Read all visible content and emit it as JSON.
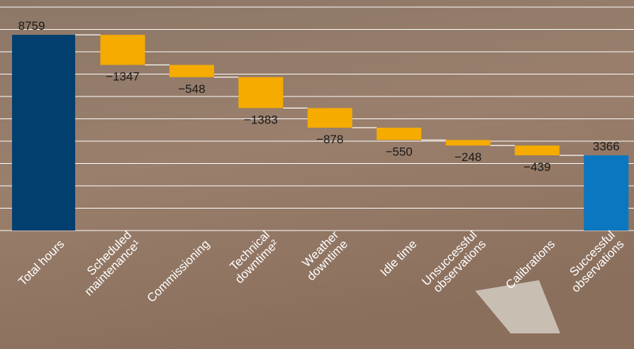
{
  "chart_data": {
    "type": "waterfall",
    "categories": [
      "Total hours",
      "Scheduled\nmaintenance¹",
      "Commissioning",
      "Technical\ndowntime²",
      "Weather\ndowntime",
      "Idle time",
      "Unsuccessful\nobservations",
      "Calibrations",
      "Successful\nobservations"
    ],
    "values": [
      8759,
      -1347,
      -548,
      -1383,
      -878,
      -550,
      -248,
      -439,
      3366
    ],
    "value_labels": [
      "8759",
      "−1347",
      "−548",
      "−1383",
      "−878",
      "−550",
      "−248",
      "−439",
      "3366"
    ],
    "colors": {
      "total": "#003f6e",
      "decrease": "#f5ab00",
      "result": "#0a77c0"
    },
    "ylim": [
      0,
      10000
    ],
    "yticks": [
      0,
      1000,
      2000,
      3000,
      4000,
      5000,
      6000,
      7000,
      8000,
      9000,
      10000
    ],
    "grid": true
  }
}
